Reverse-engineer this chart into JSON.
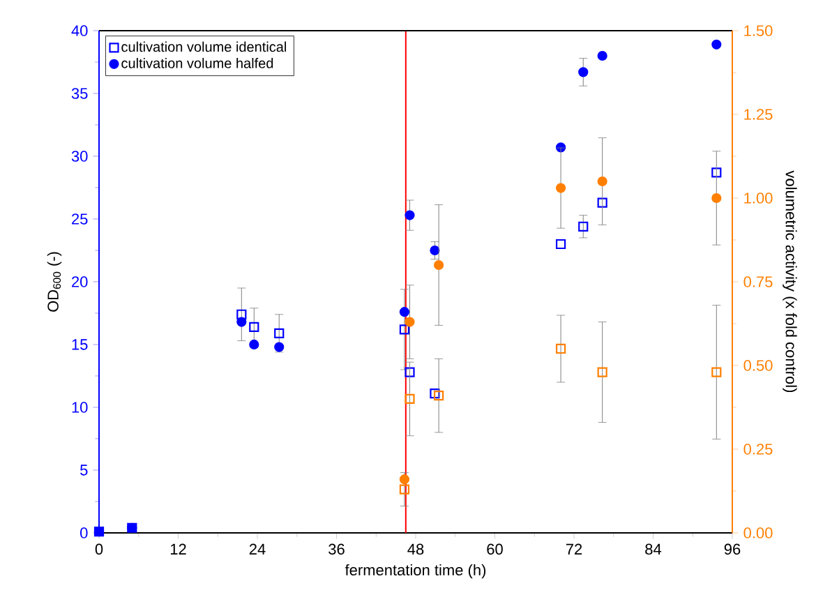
{
  "chart_data": {
    "type": "scatter",
    "xlabel": "fermentation time (h)",
    "ylabel": "OD$_{600}$ (-)",
    "y2label": "volumetric activity (x fold control)",
    "xlim": [
      0,
      96
    ],
    "xticks": [
      0,
      12,
      24,
      36,
      48,
      60,
      72,
      84,
      96
    ],
    "ylim": [
      0,
      40
    ],
    "yticks": [
      0,
      5,
      10,
      15,
      20,
      25,
      30,
      35,
      40
    ],
    "y2lim": [
      0,
      1.5
    ],
    "y2ticks": [
      {
        "value": 0,
        "label": "0.00"
      },
      {
        "value": 0.25,
        "label": "0.25"
      },
      {
        "value": 0.5,
        "label": "0.50"
      },
      {
        "value": 0.75,
        "label": "0.75"
      },
      {
        "value": 1,
        "label": "1.00"
      },
      {
        "value": 1.25,
        "label": "1.25"
      },
      {
        "value": 1.5,
        "label": "1.50"
      }
    ],
    "grid": false,
    "legend": "top left",
    "ref_lines": [
      {
        "axis": "x",
        "value": 46.5,
        "color": "#ff0000"
      }
    ],
    "series": [
      {
        "name": "cultivation volume identical",
        "color": "#0000ff",
        "marker": "square",
        "x": [
          0,
          5,
          21.6,
          23.5,
          27.3,
          46.3,
          47.1,
          50.9,
          70,
          73.4,
          76.3,
          93.6
        ],
        "values": [
          0.1,
          0.4,
          17.4,
          16.4,
          15.9,
          16.2,
          12.8,
          11.1,
          23.0,
          24.4,
          26.3,
          28.7
        ],
        "errors": [
          null,
          null,
          2.1,
          1.5,
          1.5,
          3.2,
          null,
          null,
          null,
          0.9,
          null,
          null
        ]
      },
      {
        "name": "cultivation volume halfed",
        "color": "#0000ff",
        "marker": "circle",
        "x": [
          0,
          5,
          21.6,
          23.5,
          27.3,
          46.3,
          47.1,
          50.9,
          70,
          73.4,
          76.3,
          93.6
        ],
        "values": [
          0.1,
          0.4,
          16.8,
          15.0,
          14.8,
          17.6,
          25.3,
          22.5,
          30.7,
          36.7,
          38.0,
          38.9
        ],
        "errors": [
          null,
          null,
          null,
          null,
          null,
          null,
          1.2,
          0.7,
          null,
          1.1,
          null,
          null
        ]
      },
      {
        "color": "#ff7f00",
        "marker": "square",
        "axis": "y2",
        "x": [
          46.3,
          47.1,
          51.5,
          70,
          76.3,
          93.6
        ],
        "values": [
          0.13,
          0.4,
          0.41,
          0.55,
          0.48,
          0.48
        ],
        "errors": [
          0.05,
          0.11,
          0.11,
          0.1,
          0.15,
          0.2
        ]
      },
      {
        "color": "#ff7f00",
        "marker": "circle",
        "axis": "y2",
        "x": [
          46.3,
          47.1,
          51.5,
          70,
          76.3,
          93.6
        ],
        "values": [
          0.16,
          0.63,
          0.8,
          1.03,
          1.05,
          1.0
        ],
        "errors": [
          null,
          0.11,
          0.18,
          0.12,
          0.13,
          0.14
        ]
      }
    ]
  }
}
